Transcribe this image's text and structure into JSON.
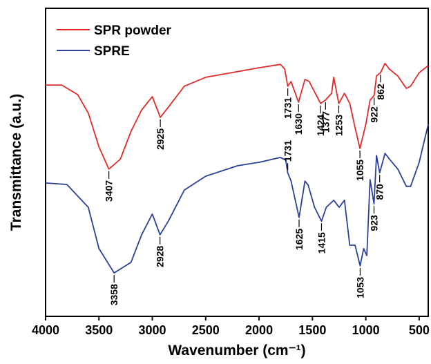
{
  "chart_data": {
    "type": "line",
    "x_label": "Wavenumber (cm⁻¹)",
    "y_label": "Transmittance (a.u.)",
    "xlim": [
      4000,
      415
    ],
    "ylim": [
      0,
      100
    ],
    "xticks": [
      4000,
      3500,
      3000,
      2500,
      2000,
      1500,
      1000,
      500
    ],
    "legend": "upper left",
    "series": [
      {
        "name": "SPR powder",
        "color": "#e02a2a",
        "x": [
          4000,
          3850,
          3700,
          3600,
          3500,
          3407,
          3300,
          3200,
          3100,
          3000,
          2925,
          2850,
          2700,
          2500,
          2000,
          1800,
          1760,
          1731,
          1700,
          1630,
          1570,
          1530,
          1424,
          1377,
          1320,
          1300,
          1253,
          1200,
          1150,
          1100,
          1055,
          1000,
          960,
          922,
          900,
          862,
          820,
          780,
          700,
          620,
          580,
          500,
          415
        ],
        "values": [
          75.1,
          75.1,
          72.0,
          66.0,
          55.0,
          47.8,
          51.0,
          60.0,
          67.0,
          71.3,
          64.6,
          67.9,
          74.7,
          77.6,
          80.7,
          81.8,
          80.3,
          74.7,
          76.2,
          69.5,
          76.9,
          76.2,
          69.1,
          70.2,
          72.4,
          77.6,
          69.1,
          72.4,
          69.1,
          61.2,
          54.5,
          62.3,
          70.2,
          71.7,
          78.0,
          79.1,
          82.1,
          80.3,
          78.0,
          74.0,
          74.7,
          79.1,
          81.4
        ]
      },
      {
        "name": "SPRE",
        "color": "#2b3f98",
        "x": [
          4000,
          3800,
          3600,
          3500,
          3358,
          3200,
          3100,
          3000,
          2928,
          2850,
          2700,
          2500,
          2200,
          2000,
          1800,
          1750,
          1731,
          1700,
          1625,
          1570,
          1540,
          1480,
          1415,
          1370,
          1300,
          1250,
          1200,
          1150,
          1100,
          1053,
          1020,
          990,
          960,
          923,
          900,
          870,
          820,
          780,
          700,
          620,
          580,
          500,
          415
        ],
        "values": [
          43.3,
          42.8,
          35.4,
          22.0,
          14.1,
          17.5,
          26.5,
          33.2,
          26.5,
          30.9,
          41.0,
          45.5,
          48.9,
          50.0,
          51.6,
          50.7,
          46.6,
          43.9,
          32.1,
          43.9,
          42.6,
          35.4,
          30.9,
          35.4,
          37.7,
          35.4,
          37.7,
          23.1,
          23.1,
          16.4,
          22.0,
          19.7,
          44.4,
          36.5,
          52.2,
          46.6,
          52.9,
          51.1,
          47.8,
          42.2,
          42.2,
          50.0,
          62.3
        ]
      }
    ],
    "annotations": [
      {
        "series": 0,
        "x": 3407,
        "label": "3407"
      },
      {
        "series": 0,
        "x": 2925,
        "label": "2925"
      },
      {
        "series": 0,
        "x": 1731,
        "label": "1731"
      },
      {
        "series": 0,
        "x": 1630,
        "label": "1630"
      },
      {
        "series": 0,
        "x": 1424,
        "label": "1424"
      },
      {
        "series": 0,
        "x": 1377,
        "label": "1377"
      },
      {
        "series": 0,
        "x": 1253,
        "label": "1253"
      },
      {
        "series": 0,
        "x": 1055,
        "label": "1055"
      },
      {
        "series": 0,
        "x": 922,
        "label": "922"
      },
      {
        "series": 0,
        "x": 862,
        "label": "862"
      },
      {
        "series": 1,
        "x": 3358,
        "label": "3358"
      },
      {
        "series": 1,
        "x": 2928,
        "label": "2928"
      },
      {
        "series": 1,
        "x": 1731,
        "label": "1731"
      },
      {
        "series": 1,
        "x": 1625,
        "label": "1625"
      },
      {
        "series": 1,
        "x": 1415,
        "label": "1415"
      },
      {
        "series": 1,
        "x": 1053,
        "label": "1053"
      },
      {
        "series": 1,
        "x": 923,
        "label": "923"
      },
      {
        "series": 1,
        "x": 870,
        "label": "870"
      }
    ]
  }
}
